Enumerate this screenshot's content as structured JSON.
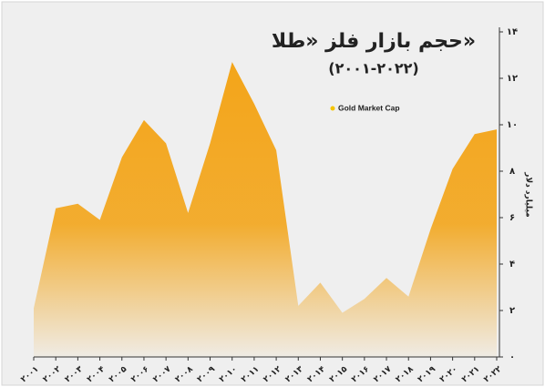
{
  "chart_data": {
    "type": "area",
    "title": "حجم بازار فلز «طلا»",
    "subtitle": "(۲۰۰۱-۲۰۲۲)",
    "y_label": "میلیارد دلار",
    "categories": [
      "۲۰۰۱",
      "۲۰۰۲",
      "۲۰۰۳",
      "۲۰۰۴",
      "۲۰۰۵",
      "۲۰۰۶",
      "۲۰۰۷",
      "۲۰۰۸",
      "۲۰۰۹",
      "۲۰۱۰",
      "۲۰۱۱",
      "۲۰۱۲",
      "۲۰۱۳",
      "۲۰۱۴",
      "۲۰۱۵",
      "۲۰۱۶",
      "۲۰۱۷",
      "۲۰۱۸",
      "۲۰۱۹",
      "۲۰۲۰",
      "۲۰۲۱",
      "۲۰۲۲"
    ],
    "series": [
      {
        "name": "Gold Market Cap",
        "color": "#f4a81c",
        "values": [
          2.1,
          6.4,
          6.6,
          5.9,
          8.6,
          10.2,
          9.2,
          6.2,
          9.2,
          12.7,
          10.9,
          8.9,
          2.2,
          3.2,
          1.9,
          2.5,
          3.4,
          2.6,
          5.5,
          8.1,
          9.6,
          9.8
        ]
      }
    ],
    "ylim": [
      0,
      14
    ],
    "yticks": [
      {
        "value": 0,
        "label": "۰"
      },
      {
        "value": 2,
        "label": "۲"
      },
      {
        "value": 4,
        "label": "۴"
      },
      {
        "value": 6,
        "label": "۶"
      },
      {
        "value": 8,
        "label": "۸"
      },
      {
        "value": 10,
        "label": "۱۰"
      },
      {
        "value": 12,
        "label": "۱۲"
      },
      {
        "value": 14,
        "label": "۱۴"
      }
    ],
    "legend_color": "#f5c400"
  }
}
